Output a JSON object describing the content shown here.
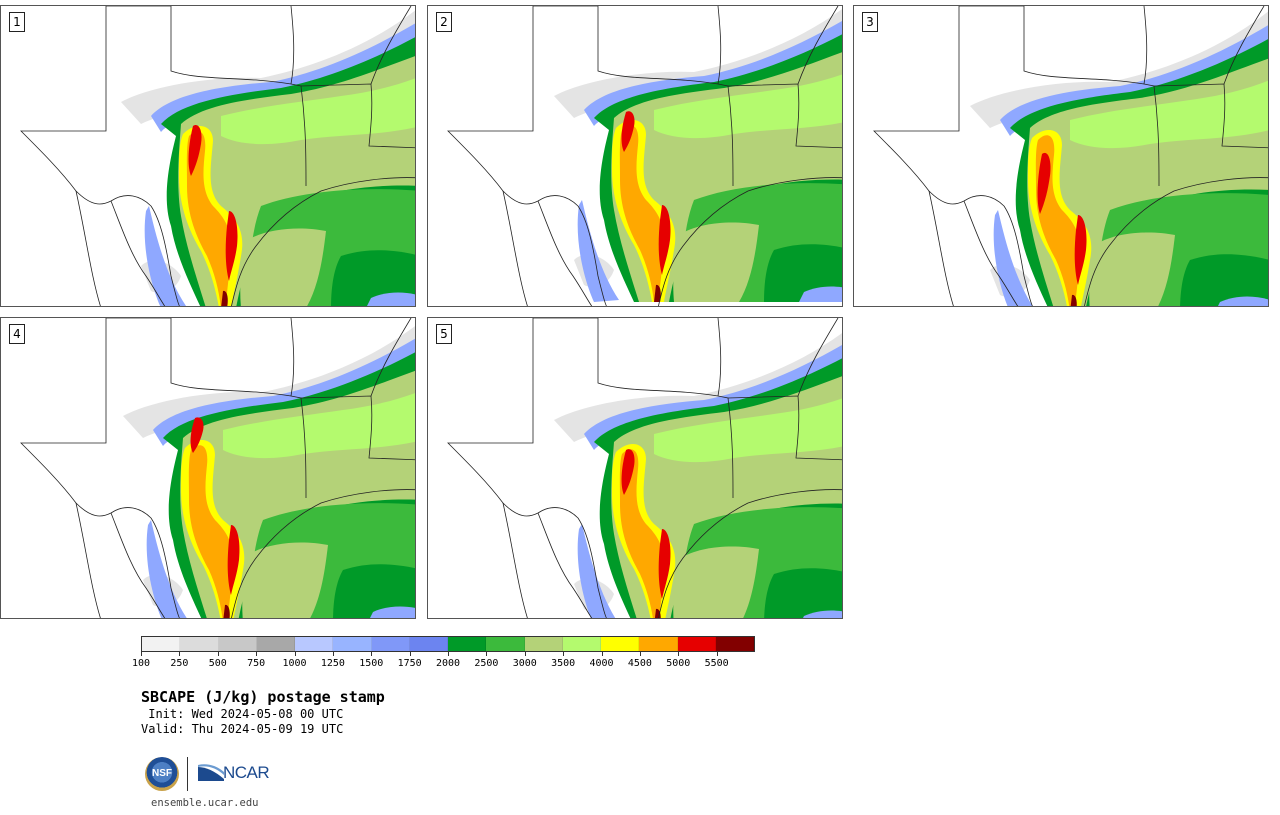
{
  "title": "SBCAPE (J/kg) postage stamp",
  "init_line": " Init: Wed 2024-05-08 00 UTC",
  "valid_line": "Valid: Thu 2024-05-09 19 UTC",
  "footer_url": "ensemble.ucar.edu",
  "logos": {
    "nsf": "NSF",
    "ncar": "NCAR"
  },
  "panels": [
    {
      "number": "1"
    },
    {
      "number": "2"
    },
    {
      "number": "3"
    },
    {
      "number": "4"
    },
    {
      "number": "5"
    }
  ],
  "colorbar": {
    "labels": [
      "100",
      "250",
      "500",
      "750",
      "1000",
      "1250",
      "1500",
      "1750",
      "2000",
      "2500",
      "3000",
      "3500",
      "4000",
      "4500",
      "5000",
      "5500"
    ],
    "colors": [
      "#f2f2f2",
      "#dcdcdc",
      "#c8c8c8",
      "#a8a8a8",
      "#b8c8ff",
      "#98b4ff",
      "#8098f8",
      "#6c84f0",
      "#009a28",
      "#3cba3c",
      "#b4d278",
      "#b4fa6e",
      "#ffff00",
      "#ffa800",
      "#e60000",
      "#820000"
    ]
  },
  "palette": {
    "white": "#ffffff",
    "light_gray": "#e4e4e4",
    "gray": "#c8c8c8",
    "blue": "#8fa8ff",
    "dark_green": "#009a28",
    "green": "#3cba3c",
    "olive": "#b4d278",
    "lime": "#b4fa6e",
    "yellow": "#ffff00",
    "orange": "#ffa800",
    "red": "#e60000",
    "dark_red": "#820000"
  }
}
